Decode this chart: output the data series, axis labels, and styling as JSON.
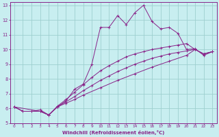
{
  "xlabel": "Windchill (Refroidissement éolien,°C)",
  "bg_color": "#c8eef0",
  "line_color": "#882288",
  "grid_color": "#9ecfcf",
  "xlim": [
    -0.5,
    23.5
  ],
  "ylim": [
    5,
    13.2
  ],
  "xticks": [
    0,
    1,
    2,
    3,
    4,
    5,
    6,
    7,
    8,
    9,
    10,
    11,
    12,
    13,
    14,
    15,
    16,
    17,
    18,
    19,
    20,
    21,
    22,
    23
  ],
  "yticks": [
    5,
    6,
    7,
    8,
    9,
    10,
    11,
    12,
    13
  ],
  "series1": [
    [
      0,
      6.1
    ],
    [
      1,
      5.8
    ],
    [
      2,
      5.8
    ],
    [
      3,
      5.8
    ],
    [
      4,
      5.55
    ],
    [
      5,
      6.1
    ],
    [
      6,
      6.5
    ],
    [
      7,
      7.3
    ],
    [
      8,
      7.65
    ],
    [
      9,
      9.0
    ],
    [
      10,
      11.5
    ],
    [
      11,
      11.5
    ],
    [
      12,
      12.3
    ],
    [
      13,
      11.7
    ],
    [
      14,
      12.5
    ],
    [
      15,
      13.0
    ],
    [
      16,
      11.9
    ],
    [
      17,
      11.4
    ],
    [
      18,
      11.5
    ],
    [
      19,
      11.1
    ],
    [
      20,
      10.0
    ],
    [
      21,
      10.05
    ],
    [
      22,
      9.6
    ],
    [
      23,
      9.85
    ]
  ],
  "series2": [
    [
      0,
      6.1
    ],
    [
      1,
      5.8
    ],
    [
      2,
      5.8
    ],
    [
      3,
      5.9
    ],
    [
      4,
      5.55
    ],
    [
      5,
      6.15
    ],
    [
      6,
      6.6
    ],
    [
      7,
      7.1
    ],
    [
      8,
      7.6
    ],
    [
      9,
      8.1
    ],
    [
      10,
      8.55
    ],
    [
      11,
      8.9
    ],
    [
      12,
      9.2
    ],
    [
      13,
      9.5
    ],
    [
      14,
      9.7
    ],
    [
      15,
      9.85
    ],
    [
      16,
      10.0
    ],
    [
      17,
      10.1
    ],
    [
      18,
      10.2
    ],
    [
      19,
      10.3
    ],
    [
      20,
      10.4
    ],
    [
      21,
      10.0
    ],
    [
      22,
      9.7
    ],
    [
      23,
      9.85
    ]
  ],
  "series3": [
    [
      0,
      6.1
    ],
    [
      1,
      5.8
    ],
    [
      2,
      5.8
    ],
    [
      3,
      5.8
    ],
    [
      4,
      5.55
    ],
    [
      5,
      6.1
    ],
    [
      6,
      6.45
    ],
    [
      7,
      6.8
    ],
    [
      8,
      7.2
    ],
    [
      9,
      7.55
    ],
    [
      10,
      7.9
    ],
    [
      11,
      8.2
    ],
    [
      12,
      8.5
    ],
    [
      13,
      8.75
    ],
    [
      14,
      9.0
    ],
    [
      15,
      9.2
    ],
    [
      16,
      9.4
    ],
    [
      17,
      9.55
    ],
    [
      18,
      9.7
    ],
    [
      19,
      9.8
    ],
    [
      20,
      9.9
    ],
    [
      21,
      10.0
    ],
    [
      22,
      9.7
    ],
    [
      23,
      9.85
    ]
  ],
  "series4": [
    [
      0,
      6.1
    ],
    [
      3,
      5.8
    ],
    [
      4,
      5.55
    ],
    [
      5,
      6.1
    ],
    [
      6,
      6.35
    ],
    [
      7,
      6.6
    ],
    [
      8,
      6.9
    ],
    [
      10,
      7.4
    ],
    [
      12,
      7.9
    ],
    [
      14,
      8.35
    ],
    [
      16,
      8.8
    ],
    [
      18,
      9.2
    ],
    [
      20,
      9.6
    ],
    [
      21,
      10.0
    ],
    [
      22,
      9.7
    ],
    [
      23,
      9.85
    ]
  ]
}
